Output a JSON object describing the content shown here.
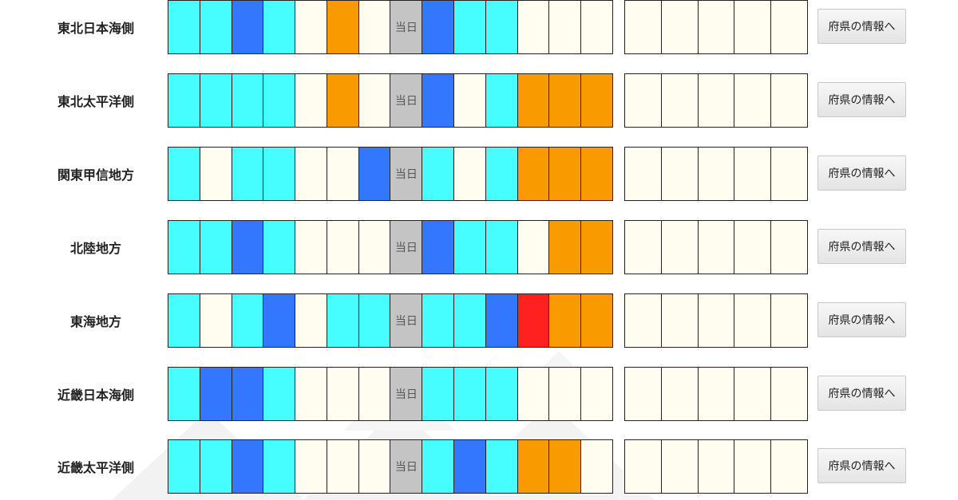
{
  "colors": {
    "cyan": "#46feff",
    "blue": "#3377ff",
    "orange": "#fa9a01",
    "red": "#ff2020",
    "cream": "#fffdf0",
    "today": "#c4c4c4"
  },
  "button_label": "府県の情報へ",
  "today_label": "当日",
  "regions": [
    {
      "name": "東北日本海側",
      "cells": [
        "cyan",
        "cyan",
        "blue",
        "cyan",
        "cream",
        "orange",
        "cream",
        "today",
        "blue",
        "cyan",
        "cyan",
        "cream",
        "cream",
        "cream"
      ]
    },
    {
      "name": "東北太平洋側",
      "cells": [
        "cyan",
        "cyan",
        "cyan",
        "cyan",
        "cream",
        "orange",
        "cream",
        "today",
        "blue",
        "cream",
        "cyan",
        "orange",
        "orange",
        "orange"
      ]
    },
    {
      "name": "関東甲信地方",
      "cells": [
        "cyan",
        "cream",
        "cyan",
        "cyan",
        "cream",
        "cream",
        "blue",
        "today",
        "cyan",
        "cream",
        "cyan",
        "orange",
        "orange",
        "orange"
      ]
    },
    {
      "name": "北陸地方",
      "cells": [
        "cyan",
        "cyan",
        "blue",
        "cyan",
        "cream",
        "cream",
        "cream",
        "today",
        "blue",
        "cyan",
        "cyan",
        "cream",
        "orange",
        "orange"
      ]
    },
    {
      "name": "東海地方",
      "cells": [
        "cyan",
        "cream",
        "cyan",
        "blue",
        "cream",
        "cyan",
        "cyan",
        "today",
        "cyan",
        "cyan",
        "blue",
        "red",
        "orange",
        "orange"
      ]
    },
    {
      "name": "近畿日本海側",
      "cells": [
        "cyan",
        "blue",
        "blue",
        "cyan",
        "cream",
        "cream",
        "cream",
        "today",
        "cyan",
        "cyan",
        "cyan",
        "cream",
        "cream",
        "cream"
      ]
    },
    {
      "name": "近畿太平洋側",
      "cells": [
        "cyan",
        "cyan",
        "blue",
        "cyan",
        "cream",
        "cream",
        "cream",
        "today",
        "cyan",
        "blue",
        "cyan",
        "orange",
        "orange",
        "cream"
      ]
    }
  ]
}
